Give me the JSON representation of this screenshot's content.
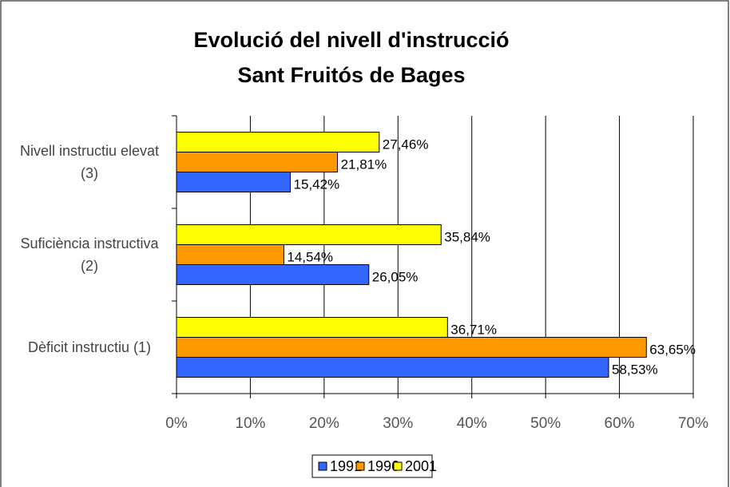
{
  "chart_data": {
    "type": "bar",
    "orientation": "horizontal",
    "title": "Evolució del nivell d'instrucció\nSant Fruitós de Bages",
    "categories": [
      "Dèficit instructiu (1)",
      "Suficiència instructiva (2)",
      "Nivell instructiu elevat (3)"
    ],
    "series": [
      {
        "name": "1991",
        "color": "#3366ff",
        "values": [
          58.53,
          26.05,
          15.42
        ],
        "value_labels": [
          "58,53%",
          "26,05%",
          "15,42%"
        ]
      },
      {
        "name": "1996",
        "color": "#ff9900",
        "values": [
          63.65,
          14.54,
          21.81
        ],
        "value_labels": [
          "63,65%",
          "14,54%",
          "21,81%"
        ]
      },
      {
        "name": "2001",
        "color": "#ffff00",
        "values": [
          36.71,
          35.84,
          27.46
        ],
        "value_labels": [
          "36,71%",
          "35,84%",
          "27,46%"
        ]
      }
    ],
    "xlim": [
      0,
      70
    ],
    "xticks": [
      {
        "value": 0,
        "label": "0%"
      },
      {
        "value": 10,
        "label": "10%"
      },
      {
        "value": 20,
        "label": "20%"
      },
      {
        "value": 30,
        "label": "30%"
      },
      {
        "value": 40,
        "label": "40%"
      },
      {
        "value": 50,
        "label": "50%"
      },
      {
        "value": 60,
        "label": "60%"
      },
      {
        "value": 70,
        "label": "70%"
      }
    ],
    "grid": true,
    "legend": "bottom"
  }
}
